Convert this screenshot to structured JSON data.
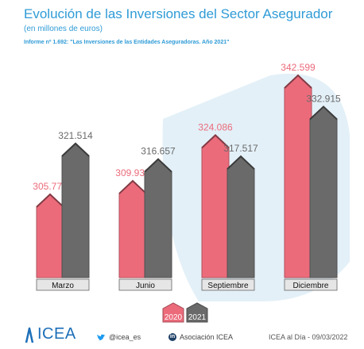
{
  "header": {
    "title": "Evolución de las Inversiones del Sector Asegurador",
    "subtitle": "(en millones de euros)",
    "source": "Informe nº 1.692: \"Las Inversiones de las Entidades Aseguradoras. Año 2021\""
  },
  "chart_data": {
    "type": "bar",
    "categories": [
      "Marzo",
      "Junio",
      "Septiembre",
      "Diciembre"
    ],
    "series": [
      {
        "name": "2020",
        "values": [
          305772,
          309935,
          324086,
          342599
        ],
        "labels": [
          "305.772",
          "309.935",
          "324.086",
          "342.599"
        ],
        "color": "#ec6b7b"
      },
      {
        "name": "2021",
        "values": [
          321514,
          316657,
          317517,
          332915
        ],
        "labels": [
          "321.514",
          "316.657",
          "317.517",
          "332.915"
        ],
        "color": "#6a6a6a"
      }
    ],
    "legend_position": "bottom-center",
    "grid": false
  },
  "colors": {
    "accent": "#2f9bd6",
    "series_2020": "#ec6b7b",
    "series_2021": "#6a6a6a",
    "background_shape": "#dcecf6"
  },
  "footer": {
    "brand": "ICEA",
    "twitter": "@icea_es",
    "linkedin": "Asociación ICEA",
    "date": "ICEA al Día - 09/03/2022"
  }
}
